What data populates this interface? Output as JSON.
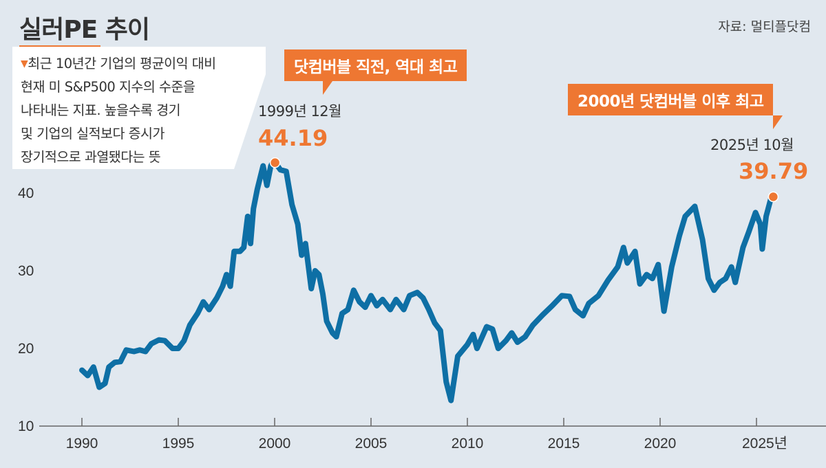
{
  "title": "실러PE 추이",
  "source": "자료: 멀티플닷컴",
  "description_lines": [
    "최근 10년간 기업의 평균이익 대비",
    "현재 미 S&P500 지수의 수준을",
    "나타내는 지표. 높을수록 경기",
    "및 기업의 실적보다 증시가",
    "장기적으로 과열됐다는 뜻"
  ],
  "annotations": {
    "peak_callout": "닷컴버블 직전, 역대 최고",
    "peak_date": "1999년 12월",
    "peak_value": "44.19",
    "latest_callout": "2000년 닷컴버블 이후 최고",
    "latest_date": "2025년 10월",
    "latest_value": "39.79"
  },
  "colors": {
    "line": "#0e6fa5",
    "accent": "#ee7732",
    "background": "#e1e8ef"
  },
  "chart_data": {
    "type": "line",
    "title": "실러PE 추이",
    "xlabel": "",
    "ylabel": "",
    "xlim": [
      1988.8,
      2028.8
    ],
    "ylim": [
      10,
      46
    ],
    "x_ticks": [
      1990,
      1995,
      2000,
      2005,
      2010,
      2015,
      2020,
      2025
    ],
    "x_tick_labels": [
      "1990",
      "1995",
      "2000",
      "2005",
      "2010",
      "2015",
      "2020",
      "2025년"
    ],
    "y_ticks": [
      10,
      20,
      30,
      40
    ],
    "y_tick_labels": [
      "10",
      "20",
      "30",
      "40"
    ],
    "grid": false,
    "series": [
      {
        "x": [
          1990.0,
          1990.3,
          1990.6,
          1990.9,
          1991.2,
          1991.4,
          1991.7,
          1992.0,
          1992.3,
          1992.7,
          1993.0,
          1993.3,
          1993.6,
          1994.0,
          1994.3,
          1994.7,
          1995.0,
          1995.3,
          1995.6,
          1996.0,
          1996.3,
          1996.6,
          1997.0,
          1997.3,
          1997.5,
          1997.7,
          1997.9,
          1998.2,
          1998.4,
          1998.6,
          1998.75,
          1998.9,
          1999.1,
          1999.4,
          1999.6,
          1999.8,
          1999.95,
          2000.3,
          2000.6,
          2000.9,
          2001.2,
          2001.4,
          2001.6,
          2001.9,
          2002.1,
          2002.3,
          2002.5,
          2002.7,
          2003.0,
          2003.2,
          2003.5,
          2003.8,
          2004.1,
          2004.4,
          2004.7,
          2005.0,
          2005.3,
          2005.6,
          2006.0,
          2006.3,
          2006.7,
          2007.0,
          2007.4,
          2007.7,
          2008.0,
          2008.3,
          2008.6,
          2008.9,
          2009.15,
          2009.5,
          2010.0,
          2010.3,
          2010.5,
          2011.0,
          2011.3,
          2011.6,
          2012.0,
          2012.3,
          2012.6,
          2013.0,
          2013.4,
          2013.9,
          2014.4,
          2014.9,
          2015.3,
          2015.6,
          2016.0,
          2016.3,
          2016.8,
          2017.3,
          2017.8,
          2018.1,
          2018.3,
          2018.7,
          2018.95,
          2019.3,
          2019.6,
          2019.9,
          2020.2,
          2020.6,
          2021.0,
          2021.3,
          2021.8,
          2022.2,
          2022.5,
          2022.8,
          2023.1,
          2023.4,
          2023.7,
          2023.9,
          2024.3,
          2024.6,
          2024.95,
          2025.2,
          2025.3,
          2025.5,
          2025.8
        ],
        "values": [
          17.2,
          16.5,
          17.6,
          15.0,
          15.5,
          17.6,
          18.2,
          18.3,
          19.8,
          19.6,
          19.8,
          19.6,
          20.6,
          21.1,
          21.0,
          20.0,
          20.0,
          21.0,
          23.0,
          24.5,
          26.0,
          25.0,
          26.5,
          28.0,
          29.5,
          28.0,
          32.5,
          32.5,
          33.0,
          37.0,
          33.5,
          38.0,
          40.5,
          43.5,
          41.0,
          43.5,
          44.19,
          43.0,
          42.8,
          38.5,
          36.0,
          32.0,
          33.5,
          27.7,
          30.0,
          29.5,
          27.0,
          23.5,
          22.0,
          21.5,
          24.5,
          25.0,
          27.5,
          26.0,
          25.3,
          26.8,
          25.5,
          26.3,
          25.0,
          26.3,
          25.0,
          26.8,
          27.2,
          26.5,
          25.0,
          23.3,
          22.3,
          15.7,
          13.3,
          19.0,
          20.5,
          21.8,
          20.0,
          22.8,
          22.5,
          20.0,
          21.0,
          22.0,
          20.8,
          21.5,
          23.0,
          24.3,
          25.5,
          26.8,
          26.7,
          25.0,
          24.2,
          25.8,
          26.8,
          28.8,
          30.5,
          33.0,
          31.0,
          32.5,
          28.3,
          29.5,
          29.0,
          30.8,
          24.8,
          30.5,
          34.5,
          37.0,
          38.3,
          34.0,
          29.0,
          27.5,
          28.5,
          29.0,
          30.5,
          28.5,
          33.0,
          35.0,
          37.5,
          36.0,
          32.8,
          37.0,
          39.79
        ]
      }
    ],
    "highlights": [
      {
        "x": 1999.95,
        "value": 44.19,
        "label": "1999년 12월"
      },
      {
        "x": 2025.8,
        "value": 39.79,
        "label": "2025년 10월"
      }
    ]
  }
}
